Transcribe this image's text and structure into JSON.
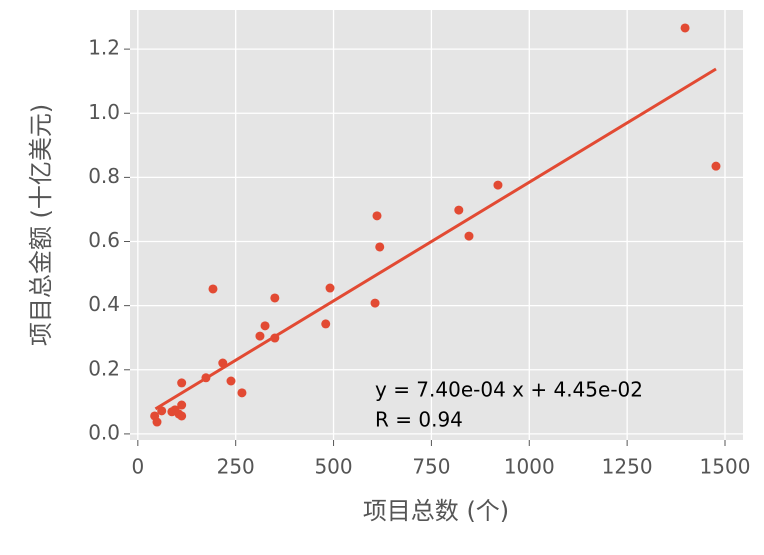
{
  "chart_data": {
    "type": "scatter",
    "xlabel": "项目总数 (个)",
    "ylabel": "项目总金额 (十亿美元)",
    "annotations": [
      "y = 7.40e-04 x + 4.45e-02",
      "R = 0.94"
    ],
    "color": "#e24a33",
    "grid": true,
    "xlim": [
      -20,
      1546
    ],
    "ylim": [
      -0.019,
      1.322
    ],
    "xticks": [
      0,
      250,
      500,
      750,
      1000,
      1250,
      1500
    ],
    "yticks": [
      {
        "value": 0,
        "label": "0.0"
      },
      0.2,
      0.4,
      0.6,
      0.8,
      {
        "value": 1,
        "label": "1.0"
      },
      1.2
    ],
    "x": [
      1398,
      1477,
      920,
      820,
      846,
      611,
      618,
      606,
      491,
      480,
      350,
      350,
      325,
      312,
      192,
      217,
      238,
      266,
      174,
      112,
      112,
      105,
      112,
      87,
      61,
      43,
      49,
      95
    ],
    "values": [
      1.266,
      0.835,
      0.776,
      0.698,
      0.617,
      0.68,
      0.583,
      0.408,
      0.455,
      0.343,
      0.424,
      0.299,
      0.337,
      0.305,
      0.452,
      0.221,
      0.165,
      0.128,
      0.175,
      0.159,
      0.09,
      0.062,
      0.056,
      0.069,
      0.072,
      0.056,
      0.037,
      0.075
    ],
    "fit": {
      "x": [
        45,
        1477
      ],
      "values": [
        0.078,
        1.138
      ]
    }
  }
}
